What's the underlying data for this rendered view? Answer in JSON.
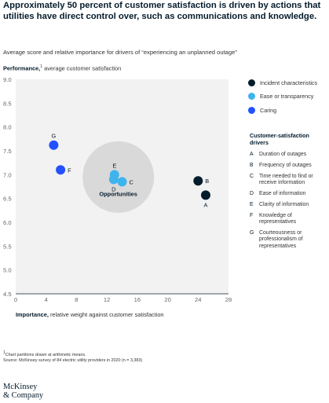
{
  "headline": "Approximately 50 percent of customer satisfaction is driven by actions that utilities have direct control over, such as communications and knowledge.",
  "subtitle": "Average score and relative importance for drivers of “experiencing an unplanned outage”",
  "y_title_bold": "Performance,",
  "y_title_sup": "1",
  "y_title_rest": " average customer satisfaction",
  "x_title_bold": "Importance,",
  "x_title_rest": " relative weight against customer satisfaction",
  "legend": [
    {
      "label": "Incident characteristics",
      "color": "#051c2c"
    },
    {
      "label": "Ease or transparency",
      "color": "#3fb4ec"
    },
    {
      "label": "Caring",
      "color": "#2251ff"
    }
  ],
  "drivers_title": "Customer-satisfaction drivers",
  "drivers": [
    {
      "letter": "A",
      "text": "Duration of outages"
    },
    {
      "letter": "B",
      "text": "Frequency of outages"
    },
    {
      "letter": "C",
      "text": "Time needed to find or receive information"
    },
    {
      "letter": "D",
      "text": "Ease of information"
    },
    {
      "letter": "E",
      "text": "Clarity of information"
    },
    {
      "letter": "F",
      "text": "Knowledge of representatives"
    },
    {
      "letter": "G",
      "text": "Courteousness or professionalism of representatives"
    }
  ],
  "footnote_1": "Chart partitions drawn at arithmetic means.",
  "footnote_sup": "1",
  "source": "Source: McKinsey survey of 84 electric utility providers in 2020 (n = 3,383)",
  "logo_line1": "McKinsey",
  "logo_line2": "& Company",
  "chart_data": {
    "type": "scatter",
    "xlim": [
      0,
      28
    ],
    "ylim": [
      4.5,
      9.0
    ],
    "x_ticks": [
      0,
      4,
      8,
      12,
      16,
      20,
      24,
      28
    ],
    "x_tick_labels": [
      "0",
      "4",
      "8",
      "12",
      "16",
      "20",
      "24",
      "28"
    ],
    "y_ticks": [
      4.5,
      5.0,
      5.5,
      6.0,
      6.5,
      7.0,
      7.5,
      8.0,
      8.5,
      9.0
    ],
    "y_tick_labels": [
      "4.5",
      "5.0",
      "5.5",
      "6.0",
      "6.5",
      "7.0",
      "7.5",
      "8.0",
      "8.5",
      "9.0"
    ],
    "grid": false,
    "opportunities_label": "Opportunities",
    "opportunities_center": {
      "x": 13.5,
      "y": 6.95
    },
    "opportunities_radius_x": 4.7,
    "points": [
      {
        "label": "A",
        "x": 25.0,
        "y": 6.57,
        "group": "Incident characteristics",
        "color": "#051c2c",
        "label_pos": "below"
      },
      {
        "label": "B",
        "x": 24.0,
        "y": 6.87,
        "group": "Incident characteristics",
        "color": "#051c2c",
        "label_pos": "right"
      },
      {
        "label": "C",
        "x": 14.0,
        "y": 6.85,
        "group": "Ease or transparency",
        "color": "#3fb4ec",
        "label_pos": "right"
      },
      {
        "label": "D",
        "x": 12.9,
        "y": 6.9,
        "group": "Ease or transparency",
        "color": "#3fb4ec",
        "label_pos": "below"
      },
      {
        "label": "E",
        "x": 13.0,
        "y": 7.0,
        "group": "Ease or transparency",
        "color": "#3fb4ec",
        "label_pos": "above"
      },
      {
        "label": "F",
        "x": 5.9,
        "y": 7.1,
        "group": "Caring",
        "color": "#2251ff",
        "label_pos": "right"
      },
      {
        "label": "G",
        "x": 5.0,
        "y": 7.62,
        "group": "Caring",
        "color": "#2251ff",
        "label_pos": "above"
      }
    ]
  }
}
